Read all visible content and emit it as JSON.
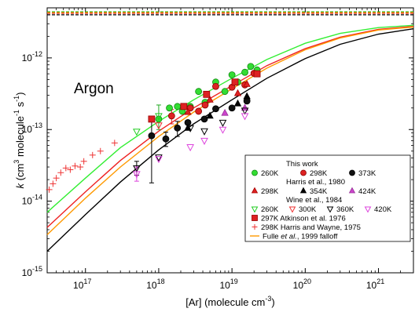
{
  "chart_data": {
    "type": "scatter",
    "xscale": "log",
    "yscale": "log",
    "xlim": [
      3e+16,
      3e+21
    ],
    "ylim": [
      1e-15,
      5e-12
    ],
    "xlabel_main": "[Ar] (molecule cm",
    "xlabel_sup": "-3",
    "xlabel_end": ")",
    "ylabel_k": "k",
    "ylabel_mid": " (cm",
    "ylabel_sup1": "3",
    "ylabel_mid2": " molecule",
    "ylabel_sup2": "-1",
    "ylabel_s": " s",
    "ylabel_sup3": "-1",
    "ylabel_end": ")",
    "annotation": "Argon",
    "x_tick_exponents": [
      "17",
      "18",
      "19",
      "20",
      "21"
    ],
    "y_tick_exponents": [
      "-15",
      "-14",
      "-13",
      "-12"
    ],
    "tick_base": "10",
    "high_pressure_limits": [
      {
        "color": "#00b000",
        "value": 4.4e-12
      },
      {
        "color": "#e00000",
        "value": 4.2e-12
      },
      {
        "color": "#000000",
        "value": 4e-12
      },
      {
        "color": "#ff9900",
        "value": 4.3e-12
      }
    ],
    "curves": [
      {
        "name": "260K",
        "color": "#33ee33",
        "points": [
          [
            3e+16,
            7e-15
          ],
          [
            1e+17,
            2.1e-14
          ],
          [
            3e+17,
            5.6e-14
          ],
          [
            1e+18,
            1.3e-13
          ],
          [
            3e+18,
            2.6e-13
          ],
          [
            1e+19,
            5.2e-13
          ],
          [
            3e+19,
            9.5e-13
          ],
          [
            1e+20,
            1.6e-12
          ],
          [
            3e+20,
            2.2e-12
          ],
          [
            1e+21,
            2.65e-12
          ],
          [
            3e+21,
            2.85e-12
          ]
        ]
      },
      {
        "name": "298K",
        "color": "#ee2222",
        "points": [
          [
            3e+16,
            4.3e-15
          ],
          [
            1e+17,
            1.35e-14
          ],
          [
            3e+17,
            3.7e-14
          ],
          [
            1e+18,
            9.5e-14
          ],
          [
            3e+18,
            2e-13
          ],
          [
            1e+19,
            4.1e-13
          ],
          [
            3e+19,
            7.8e-13
          ],
          [
            1e+20,
            1.35e-12
          ],
          [
            3e+20,
            1.95e-12
          ],
          [
            1e+21,
            2.5e-12
          ],
          [
            3e+21,
            2.75e-12
          ]
        ]
      },
      {
        "name": "Fulle",
        "color": "#ff9900",
        "points": [
          [
            3e+16,
            3.4e-15
          ],
          [
            1e+17,
            1.1e-14
          ],
          [
            3e+17,
            3e-14
          ],
          [
            1e+18,
            8e-14
          ],
          [
            3e+18,
            1.75e-13
          ],
          [
            1e+19,
            3.7e-13
          ],
          [
            3e+19,
            7.2e-13
          ],
          [
            1e+20,
            1.3e-12
          ],
          [
            3e+20,
            1.9e-12
          ],
          [
            1e+21,
            2.45e-12
          ],
          [
            3e+21,
            2.7e-12
          ]
        ]
      },
      {
        "name": "373K",
        "color": "#000000",
        "points": [
          [
            3e+16,
            2e-15
          ],
          [
            1e+17,
            6.5e-15
          ],
          [
            3e+17,
            1.85e-14
          ],
          [
            1e+18,
            5.2e-14
          ],
          [
            3e+18,
            1.2e-13
          ],
          [
            1e+19,
            2.6e-13
          ],
          [
            3e+19,
            5.2e-13
          ],
          [
            1e+20,
            9.8e-13
          ],
          [
            3e+20,
            1.55e-12
          ],
          [
            1e+21,
            2.15e-12
          ],
          [
            3e+21,
            2.55e-12
          ]
        ]
      }
    ],
    "series": [
      {
        "id": "tw260",
        "marker": "circle",
        "fill": "#33dd33",
        "stroke": "#118811",
        "points": [
          [
            1e+18,
            1.4e-13
          ],
          [
            1.4e+18,
            2e-13
          ],
          [
            1.8e+18,
            2.1e-13
          ],
          [
            2.1e+18,
            1.8e-13
          ],
          [
            2.7e+18,
            2.1e-13
          ],
          [
            3.5e+18,
            3.4e-13
          ],
          [
            4.3e+18,
            2.4e-13
          ],
          [
            6e+18,
            4.6e-13
          ],
          [
            8e+18,
            3.4e-13
          ],
          [
            1e+19,
            5.8e-13
          ],
          [
            1.2e+19,
            4.6e-13
          ],
          [
            1.5e+19,
            6.3e-13
          ],
          [
            1.8e+19,
            7.6e-13
          ],
          [
            2.2e+19,
            6.8e-13
          ]
        ]
      },
      {
        "id": "tw298",
        "marker": "circle",
        "fill": "#dd2222",
        "stroke": "#880000",
        "points": [
          [
            1.5e+18,
            1.55e-13
          ],
          [
            2.7e+18,
            2e-13
          ],
          [
            3.5e+18,
            1.8e-13
          ],
          [
            4.3e+18,
            2.2e-13
          ],
          [
            6e+18,
            4e-13
          ],
          [
            1e+19,
            3.9e-13
          ],
          [
            1.5e+19,
            4.2e-13
          ],
          [
            2e+19,
            6.1e-13
          ]
        ]
      },
      {
        "id": "tw373",
        "marker": "circle",
        "fill": "#111111",
        "stroke": "#000000",
        "points": [
          [
            8e+17,
            8.2e-14
          ],
          [
            1.25e+18,
            7.4e-14
          ],
          [
            1.8e+18,
            1.05e-13
          ],
          [
            2.5e+18,
            1.25e-13
          ],
          [
            4.2e+18,
            1.4e-13
          ],
          [
            6e+18,
            1.95e-13
          ],
          [
            1e+19,
            2e-13
          ],
          [
            1.6e+19,
            2.5e-13
          ]
        ]
      },
      {
        "id": "h298",
        "marker": "triangle-up",
        "fill": "#dd2222",
        "stroke": "#aa0000",
        "points": [
          [
            2.5e+18,
            1.75e-13
          ],
          [
            5e+18,
            2.6e-13
          ],
          [
            1.2e+19,
            3.2e-13
          ],
          [
            1.6e+19,
            4.3e-13
          ]
        ]
      },
      {
        "id": "h354",
        "marker": "triangle-up",
        "fill": "#000000",
        "stroke": "#000000",
        "points": [
          [
            2.5e+18,
            1.05e-13
          ],
          [
            5e+18,
            1.55e-13
          ],
          [
            1.2e+19,
            2.3e-13
          ],
          [
            1.6e+19,
            2.9e-13
          ]
        ]
      },
      {
        "id": "h424",
        "marker": "triangle-up",
        "fill": "#cc44cc",
        "stroke": "#993399",
        "points": [
          [
            8e+18,
            1.7e-13
          ],
          [
            1.5e+19,
            2e-13
          ]
        ]
      },
      {
        "id": "w260",
        "marker": "triangle-down",
        "fill": "none",
        "stroke": "#22cc22",
        "points": [
          [
            5e+17,
            9.4e-14
          ],
          [
            1e+18,
            1.55e-13
          ]
        ]
      },
      {
        "id": "w300",
        "marker": "triangle-down",
        "fill": "none",
        "stroke": "#ee3333",
        "points": [
          [
            1e+18,
            1.15e-13
          ]
        ]
      },
      {
        "id": "w360",
        "marker": "triangle-down",
        "fill": "none",
        "stroke": "#000000",
        "points": [
          [
            5e+17,
            2.9e-14
          ],
          [
            1e+18,
            4.1e-14
          ],
          [
            2.7e+18,
            1.05e-13
          ],
          [
            4.2e+18,
            9.5e-14
          ],
          [
            7.5e+18,
            1.25e-13
          ],
          [
            1.5e+19,
            1.85e-13
          ]
        ]
      },
      {
        "id": "w420",
        "marker": "triangle-down",
        "fill": "none",
        "stroke": "#dd44dd",
        "points": [
          [
            5e+17,
            2.4e-14
          ],
          [
            1e+18,
            3.9e-14
          ],
          [
            2.7e+18,
            5.7e-14
          ],
          [
            4.2e+18,
            7e-14
          ],
          [
            7.5e+18,
            1e-13
          ],
          [
            1.5e+19,
            1.55e-13
          ]
        ]
      },
      {
        "id": "atk297",
        "marker": "square",
        "fill": "#dd2222",
        "stroke": "#990000",
        "points": [
          [
            8e+17,
            1.4e-13
          ],
          [
            2.2e+18,
            2.1e-13
          ],
          [
            4.5e+18,
            3.1e-13
          ],
          [
            1.1e+19,
            4.6e-13
          ],
          [
            2.2e+19,
            6e-13
          ]
        ]
      },
      {
        "id": "hw298",
        "marker": "plus",
        "fill": "none",
        "stroke": "#ee3333",
        "points": [
          [
            3.2e+16,
            1.45e-14
          ],
          [
            3.6e+16,
            1.75e-14
          ],
          [
            4e+16,
            2.1e-14
          ],
          [
            4.6e+16,
            2.5e-14
          ],
          [
            5.4e+16,
            2.9e-14
          ],
          [
            6.2e+16,
            2.75e-14
          ],
          [
            7.2e+16,
            3.1e-14
          ],
          [
            8.5e+16,
            3e-14
          ],
          [
            9.5e+16,
            3.6e-14
          ],
          [
            1.25e+17,
            4.4e-14
          ],
          [
            1.6e+17,
            5e-14
          ],
          [
            2.5e+17,
            6.5e-14
          ]
        ]
      }
    ],
    "error_bars": [
      {
        "x": 8e+17,
        "y": 8.2e-14,
        "lo": 1.8e-14,
        "hi": 1.45e-13,
        "color": "#000000"
      },
      {
        "x": 1.25e+18,
        "y": 7.4e-14,
        "lo": 5.8e-14,
        "hi": 9.2e-14,
        "color": "#000000"
      },
      {
        "x": 1.8e+18,
        "y": 1.05e-13,
        "lo": 8e-14,
        "hi": 1.3e-13,
        "color": "#000000"
      },
      {
        "x": 1.5e+18,
        "y": 1.55e-13,
        "lo": 1.2e-13,
        "hi": 1.9e-13,
        "color": "#dd2222"
      },
      {
        "x": 1e+18,
        "y": 1.4e-13,
        "lo": 1e-13,
        "hi": 2.2e-13,
        "color": "#22aa22"
      },
      {
        "x": 5e+17,
        "y": 2.9e-14,
        "lo": 2.3e-14,
        "hi": 3.6e-14,
        "color": "#000000"
      },
      {
        "x": 5e+17,
        "y": 2.4e-14,
        "lo": 1.9e-14,
        "hi": 3e-14,
        "color": "#dd44dd"
      }
    ],
    "legend": {
      "placement": "lower-right",
      "rows": [
        {
          "type": "header",
          "label": "This work"
        },
        {
          "type": "triple",
          "items": [
            {
              "marker": "circle",
              "fill": "#33dd33",
              "stroke": "#118811",
              "label": "260K"
            },
            {
              "marker": "circle",
              "fill": "#dd2222",
              "stroke": "#880000",
              "label": "298K"
            },
            {
              "marker": "circle",
              "fill": "#111111",
              "stroke": "#000000",
              "label": "373K"
            }
          ]
        },
        {
          "type": "header",
          "label": "Harris et al., 1980"
        },
        {
          "type": "triple",
          "items": [
            {
              "marker": "triangle-up",
              "fill": "#dd2222",
              "stroke": "#aa0000",
              "label": "298K"
            },
            {
              "marker": "triangle-up",
              "fill": "#000000",
              "stroke": "#000000",
              "label": "354K"
            },
            {
              "marker": "triangle-up",
              "fill": "#cc44cc",
              "stroke": "#993399",
              "label": "424K"
            }
          ]
        },
        {
          "type": "header",
          "label": "Wine et al., 1984"
        },
        {
          "type": "quad",
          "items": [
            {
              "marker": "triangle-down",
              "fill": "none",
              "stroke": "#22cc22",
              "label": "260K"
            },
            {
              "marker": "triangle-down",
              "fill": "none",
              "stroke": "#ee3333",
              "label": "300K"
            },
            {
              "marker": "triangle-down",
              "fill": "none",
              "stroke": "#000000",
              "label": "360K"
            },
            {
              "marker": "triangle-down",
              "fill": "none",
              "stroke": "#dd44dd",
              "label": "420K"
            }
          ]
        },
        {
          "type": "single",
          "marker": "square",
          "fill": "#dd2222",
          "stroke": "#990000",
          "label": "297K Atkinson et al. 1976"
        },
        {
          "type": "single",
          "marker": "plus",
          "fill": "none",
          "stroke": "#ee3333",
          "label": "298K Harris and Wayne, 1975"
        },
        {
          "type": "fulle",
          "color": "#ff9900",
          "pre": "Fulle ",
          "italic": "et al.",
          "post": ", 1999 falloff"
        }
      ]
    }
  }
}
